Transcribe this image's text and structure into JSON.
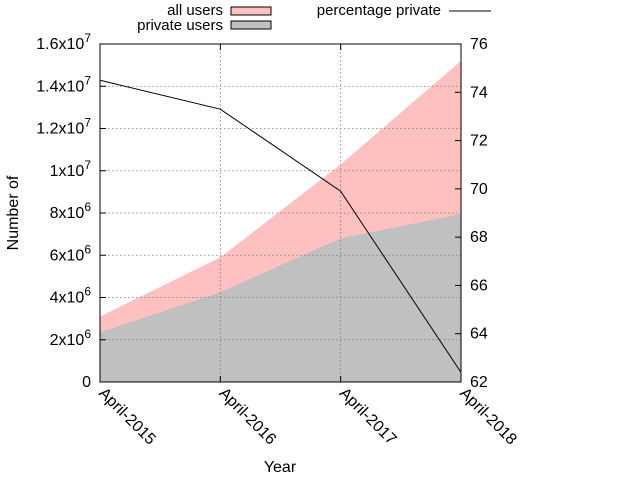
{
  "chart_data": {
    "type": "area",
    "xlabel": "Year",
    "ylabel": "Number of",
    "x": [
      "April-2015",
      "April-2016",
      "April-2017",
      "April-2018"
    ],
    "y_left": {
      "lim": [
        0,
        16000000
      ],
      "ticks": [
        {
          "value": 0,
          "mant": "0",
          "exp": ""
        },
        {
          "value": 2000000,
          "mant": "2x10",
          "exp": "6"
        },
        {
          "value": 4000000,
          "mant": "4x10",
          "exp": "6"
        },
        {
          "value": 6000000,
          "mant": "6x10",
          "exp": "6"
        },
        {
          "value": 8000000,
          "mant": "8x10",
          "exp": "6"
        },
        {
          "value": 10000000,
          "mant": "1x10",
          "exp": "7"
        },
        {
          "value": 12000000,
          "mant": "1.2x10",
          "exp": "7"
        },
        {
          "value": 14000000,
          "mant": "1.4x10",
          "exp": "7"
        },
        {
          "value": 16000000,
          "mant": "1.6x10",
          "exp": "7"
        }
      ]
    },
    "y_right": {
      "lim": [
        62,
        76
      ],
      "ticks": [
        "62",
        "64",
        "66",
        "68",
        "70",
        "72",
        "74",
        "76"
      ]
    },
    "grid": true,
    "legend_position": "top",
    "series": [
      {
        "name": "all users",
        "kind": "area",
        "axis": "left",
        "color": "#ffc0c0",
        "values": [
          3100000,
          5900000,
          10300000,
          15200000
        ]
      },
      {
        "name": "private users",
        "kind": "area",
        "axis": "left",
        "color": "#c0c0c0",
        "values": [
          2350000,
          4250000,
          6800000,
          7950000
        ]
      },
      {
        "name": "percentage private",
        "kind": "line",
        "axis": "right",
        "color": "#000000",
        "values": [
          74.5,
          73.3,
          69.9,
          62.4
        ]
      }
    ]
  }
}
